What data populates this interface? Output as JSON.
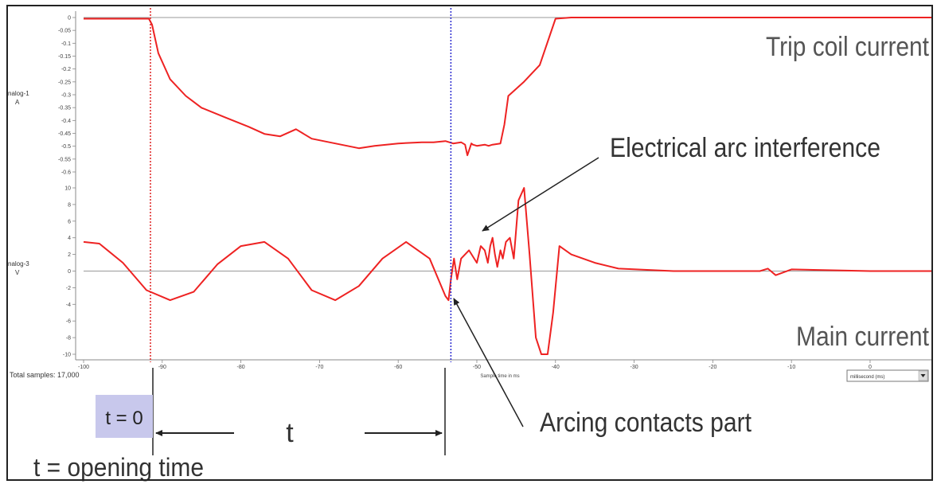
{
  "chart_data": {
    "type": "line",
    "panels": [
      {
        "axis_label": "nalog-1",
        "axis_unit": "A",
        "ylim": [
          -0.65,
          0
        ],
        "yticks": [
          "0",
          "-0.05",
          "-0.1",
          "-0.15",
          "-0.2",
          "-0.25",
          "-0.3",
          "-0.35",
          "-0.4",
          "-0.45",
          "-0.5",
          "-0.55",
          "-0.6"
        ],
        "series_label": "Trip coil current",
        "series": [
          {
            "x": [
              -100,
              -91.7,
              -91.3,
              -90.5,
              -89,
              -87,
              -85,
              -82,
              -79,
              -77,
              -75,
              -73,
              -71,
              -68,
              -65,
              -63,
              -60,
              -57,
              -55.5,
              -54,
              -53,
              -52,
              -51.5,
              -51.2,
              -50.7,
              -50.5,
              -50,
              -49,
              -48.5,
              -48,
              -47,
              -46.5,
              -46,
              -44,
              -42,
              -40,
              -38,
              -30,
              -20,
              -10,
              0,
              8
            ],
            "y": [
              -0.005,
              -0.005,
              -0.03,
              -0.15,
              -0.26,
              -0.33,
              -0.38,
              -0.42,
              -0.46,
              -0.49,
              -0.5,
              -0.47,
              -0.51,
              -0.53,
              -0.55,
              -0.54,
              -0.53,
              -0.525,
              -0.525,
              -0.52,
              -0.53,
              -0.525,
              -0.535,
              -0.58,
              -0.53,
              -0.535,
              -0.54,
              -0.535,
              -0.54,
              -0.535,
              -0.53,
              -0.45,
              -0.33,
              -0.27,
              -0.2,
              -0.005,
              0,
              0,
              0,
              0,
              0,
              0
            ]
          }
        ]
      },
      {
        "axis_label": "nalog-3",
        "axis_unit": "V",
        "ylim": [
          -10,
          10
        ],
        "yticks": [
          "10",
          "8",
          "6",
          "4",
          "2",
          "0",
          "-2",
          "-4",
          "-6",
          "-8",
          "-10"
        ],
        "series_label": "Main current",
        "series": [
          {
            "x": [
              -100,
              -98,
              -95,
              -92,
              -89,
              -86,
              -83,
              -80,
              -77,
              -74,
              -71,
              -68,
              -65,
              -62,
              -59,
              -56,
              -54,
              -53.6,
              -53.3,
              -52.9,
              -52.5,
              -52,
              -51,
              -50,
              -49.5,
              -49,
              -48.6,
              -48.3,
              -48,
              -47.7,
              -47.4,
              -47,
              -46.7,
              -46.3,
              -45.8,
              -45.3,
              -44.7,
              -44,
              -43.3,
              -42.5,
              -41.8,
              -41,
              -40.3,
              -39.5,
              -38,
              -35,
              -32,
              -25,
              -18,
              -15,
              -14,
              -13,
              -12,
              -10,
              0,
              8
            ],
            "y": [
              3.5,
              3.3,
              1.0,
              -2.3,
              -3.5,
              -2.5,
              0.8,
              3.0,
              3.5,
              1.5,
              -2.3,
              -3.5,
              -1.8,
              1.5,
              3.5,
              1.5,
              -3.0,
              -3.5,
              -1.0,
              1.5,
              -1.0,
              1.5,
              2.5,
              1.0,
              3.0,
              2.5,
              1.0,
              3.0,
              4.0,
              2.0,
              0.5,
              2.5,
              1.5,
              3.5,
              4.0,
              1.5,
              8.5,
              10.0,
              2.0,
              -8.0,
              -10.0,
              -10.0,
              -5.0,
              3.0,
              2.0,
              1.0,
              0.3,
              0.0,
              0.0,
              0.0,
              0.0,
              0.3,
              -0.5,
              0.2,
              0.0,
              0.0
            ]
          }
        ]
      }
    ],
    "x_axis": {
      "xlim": [
        -100,
        8
      ],
      "ticks": [
        "-90",
        "-80",
        "-70",
        "-60",
        "-50",
        "-40",
        "-30",
        "-20",
        "-10",
        "0"
      ],
      "first_tick": "-100",
      "label": "Sample time in ms"
    },
    "vlines": [
      {
        "x": -91.5,
        "color": "#e02020",
        "style": "dotted"
      },
      {
        "x": -53.3,
        "color": "#2a2ad0",
        "style": "dotted"
      }
    ],
    "colors": {
      "trace": "#ee2222",
      "zero_line": "#999999"
    },
    "annotations": {
      "arc_interference": "Electrical arc interference",
      "arcing_contacts": "Arcing contacts part",
      "t0": "t = 0",
      "t": "t",
      "opening_time": "t = opening time"
    }
  },
  "footer": {
    "total_samples": "Total samples: 17,000",
    "unit_select": "millisecond (ms)"
  }
}
